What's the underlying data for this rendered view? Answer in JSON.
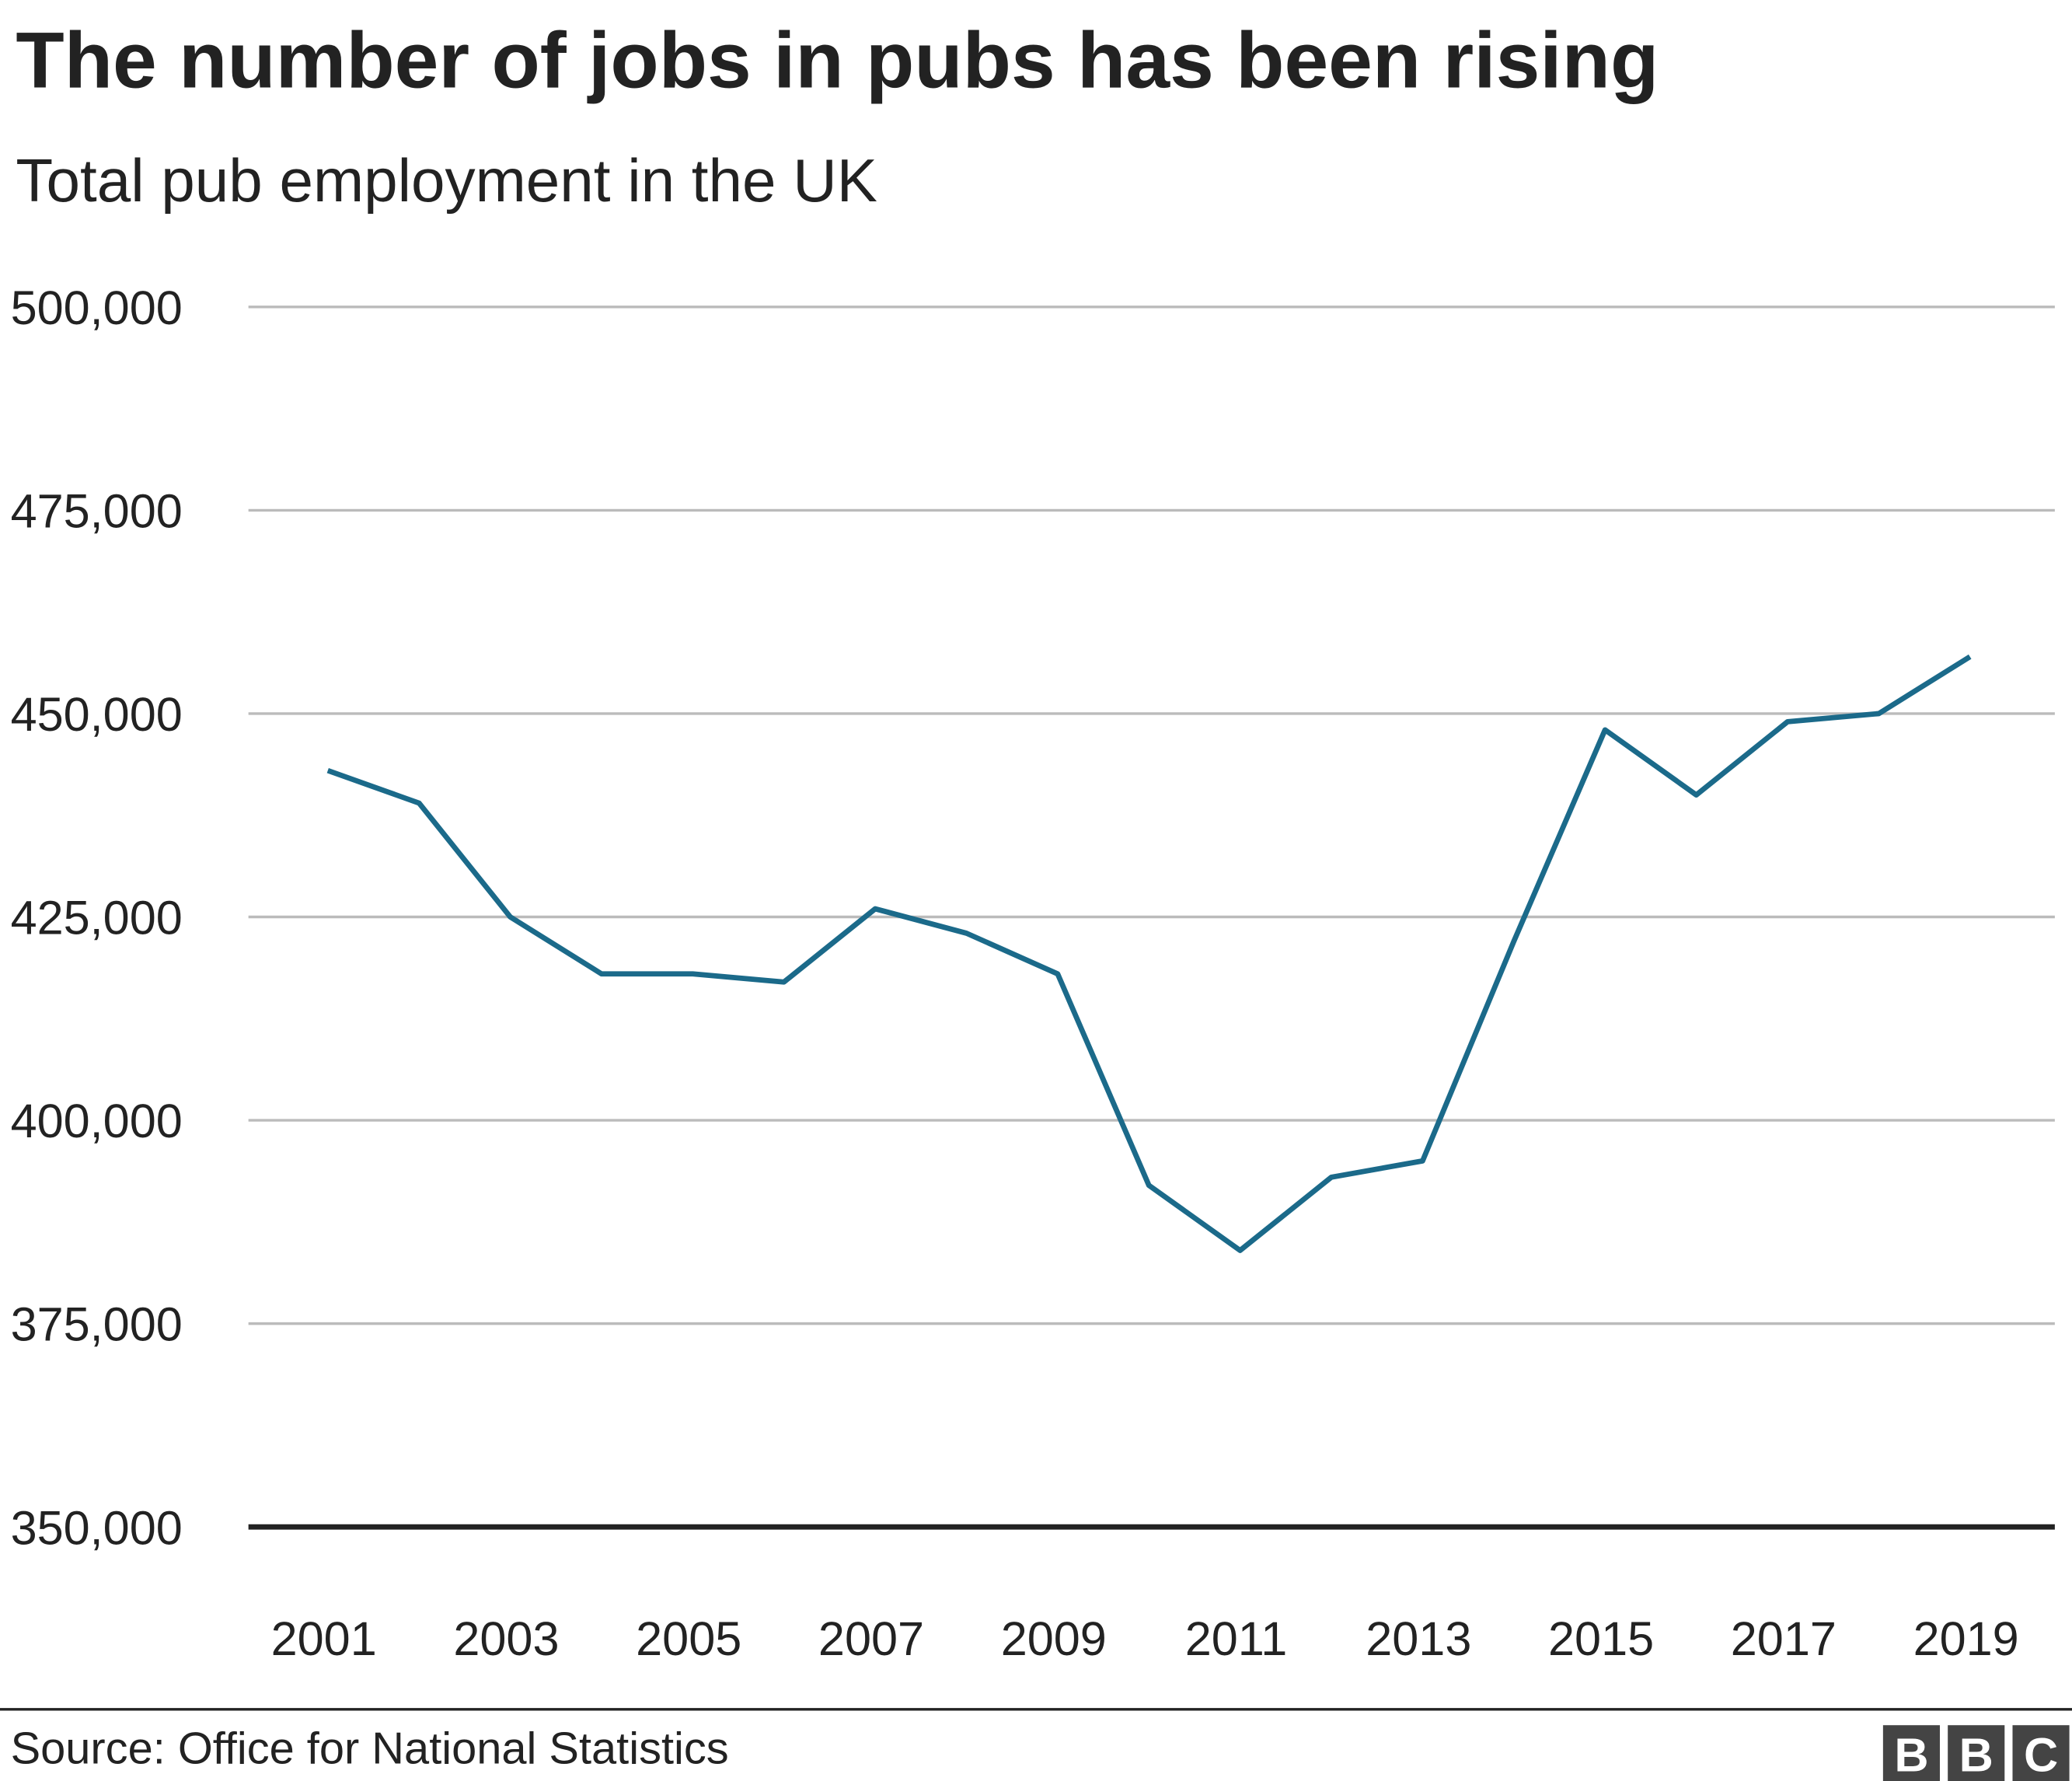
{
  "chart_data": {
    "type": "line",
    "title": "The number of jobs in pubs has been rising",
    "subtitle": "Total pub employment in the UK",
    "x": [
      2001,
      2002,
      2003,
      2004,
      2005,
      2006,
      2007,
      2008,
      2009,
      2010,
      2011,
      2012,
      2013,
      2014,
      2015,
      2016,
      2017,
      2018,
      2019
    ],
    "values": [
      443000,
      439000,
      425000,
      418000,
      418000,
      417000,
      426000,
      423000,
      418000,
      392000,
      384000,
      393000,
      395000,
      422000,
      448000,
      440000,
      449000,
      450000,
      457000
    ],
    "color": "#1b6a8a",
    "xlim": [
      2000.13,
      2019.93
    ],
    "xticks": [
      2001,
      2003,
      2005,
      2007,
      2009,
      2011,
      2013,
      2015,
      2017,
      2019
    ],
    "ylim": [
      350000,
      500000
    ],
    "yticks": [
      {
        "value": 350000,
        "label": "350,000"
      },
      {
        "value": 375000,
        "label": "375,000"
      },
      {
        "value": 400000,
        "label": "400,000"
      },
      {
        "value": 425000,
        "label": "425,000"
      },
      {
        "value": 450000,
        "label": "450,000"
      },
      {
        "value": 475000,
        "label": "475,000"
      },
      {
        "value": 500000,
        "label": "500,000"
      }
    ],
    "grid": true,
    "source": "Source: Office for National Statistics",
    "logo": [
      "B",
      "B",
      "C"
    ]
  }
}
